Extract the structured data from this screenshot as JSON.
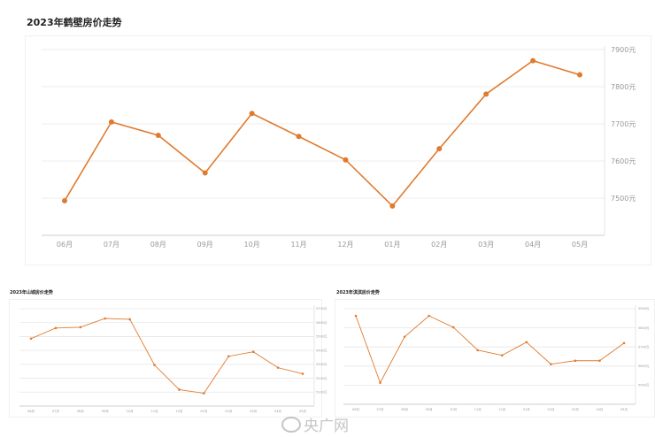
{
  "chart_data": [
    {
      "type": "line",
      "title": "2023年鹤壁房价走势",
      "categories": [
        "06月",
        "07月",
        "08月",
        "09月",
        "10月",
        "11月",
        "12月",
        "01月",
        "02月",
        "03月",
        "04月",
        "05月"
      ],
      "values": [
        7493,
        7705,
        7669,
        7568,
        7728,
        7666,
        7603,
        7479,
        7633,
        7780,
        7870,
        7832
      ],
      "yticks": [
        7500,
        7600,
        7700,
        7800,
        7900
      ],
      "ytick_suffix": "元",
      "ylim": [
        7400,
        7900
      ],
      "yaxis_side": "right",
      "grid": true,
      "color": "#e07a2e"
    },
    {
      "type": "line",
      "title": "2023年山城房价走势",
      "categories": [
        "06月",
        "07月",
        "08月",
        "09月",
        "10月",
        "11月",
        "12月",
        "01月",
        "02月",
        "03月",
        "04月",
        "05月"
      ],
      "values": [
        5485,
        5561,
        5567,
        5630,
        5624,
        5295,
        5118,
        5092,
        5358,
        5390,
        5276,
        5232
      ],
      "yticks": [
        5100,
        5200,
        5300,
        5400,
        5500,
        5600,
        5700
      ],
      "ytick_suffix": "元",
      "ylim": [
        5000,
        5700
      ],
      "yaxis_side": "right",
      "grid": true,
      "color": "#e07a2e"
    },
    {
      "type": "line",
      "title": "2023年淇滨房价走势",
      "categories": [
        "06月",
        "07月",
        "08月",
        "09月",
        "10月",
        "11月",
        "12月",
        "01月",
        "02月",
        "03月",
        "04月",
        "05月"
      ],
      "values": [
        5863,
        5513,
        5753,
        5863,
        5803,
        5683,
        5656,
        5725,
        5610,
        5628,
        5628,
        5720
      ],
      "yticks": [
        5500,
        5600,
        5700,
        5800,
        5900
      ],
      "ytick_suffix": "元",
      "ylim": [
        5400,
        5900
      ],
      "yaxis_side": "right",
      "grid": true,
      "color": "#e07a2e"
    }
  ],
  "watermark": "央广网"
}
